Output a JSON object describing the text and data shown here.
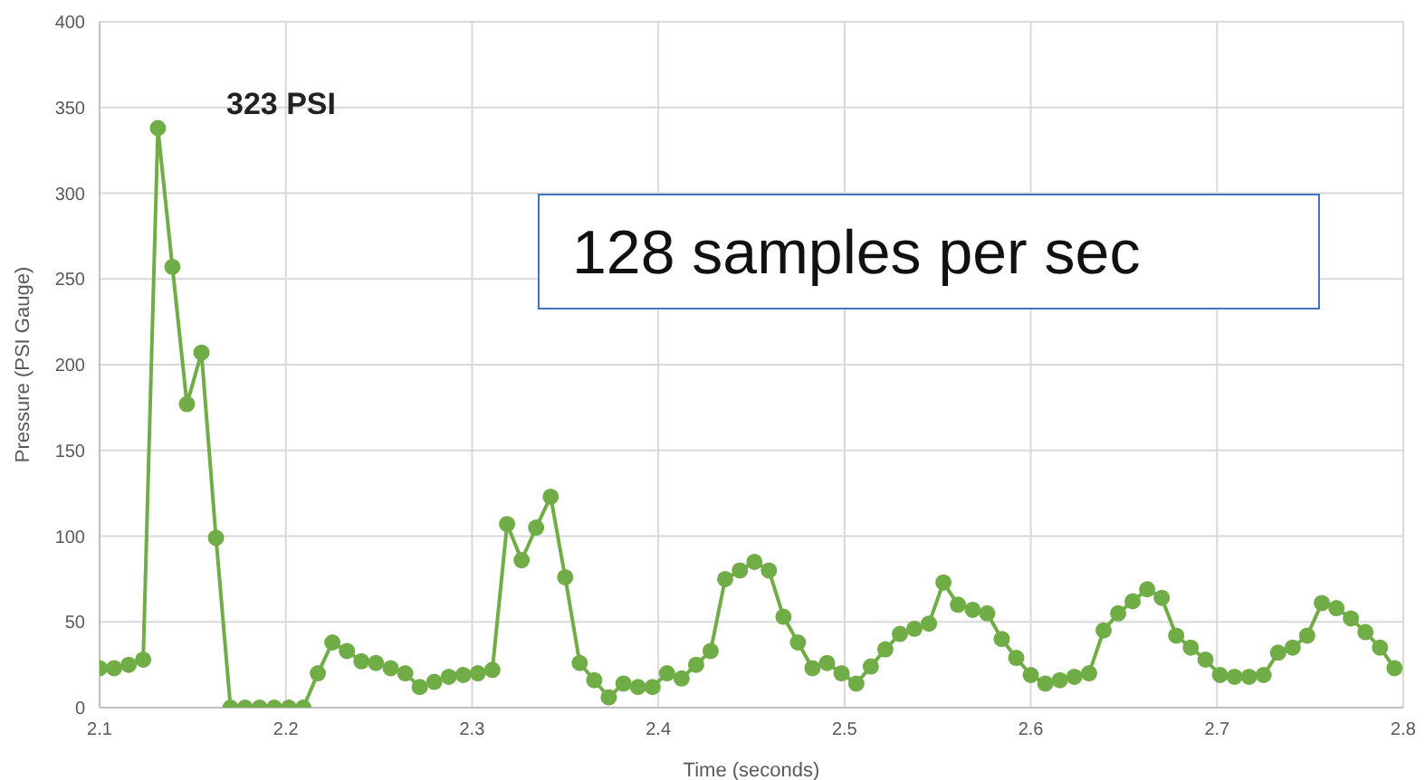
{
  "chart_data": {
    "type": "line",
    "xlabel": "Time (seconds)",
    "ylabel": "Pressure (PSI Gauge)",
    "annotations": [
      "323 PSI",
      "128 samples per sec"
    ],
    "x": [
      2.1,
      2.1078,
      2.1156,
      2.1234,
      2.1313,
      2.1391,
      2.1469,
      2.1547,
      2.1625,
      2.1703,
      2.1781,
      2.1859,
      2.1938,
      2.2016,
      2.2094,
      2.2172,
      2.225,
      2.2328,
      2.2406,
      2.2484,
      2.2563,
      2.2641,
      2.2719,
      2.2797,
      2.2875,
      2.2953,
      2.3031,
      2.3109,
      2.3188,
      2.3266,
      2.3344,
      2.3422,
      2.35,
      2.3578,
      2.3656,
      2.3734,
      2.3813,
      2.3891,
      2.3969,
      2.4047,
      2.4125,
      2.4203,
      2.4281,
      2.4359,
      2.4438,
      2.4516,
      2.4594,
      2.4672,
      2.475,
      2.4828,
      2.4906,
      2.4984,
      2.5063,
      2.5141,
      2.5219,
      2.5297,
      2.5375,
      2.5453,
      2.5531,
      2.5609,
      2.5688,
      2.5766,
      2.5844,
      2.5922,
      2.6,
      2.6078,
      2.6156,
      2.6234,
      2.6313,
      2.6391,
      2.6469,
      2.6547,
      2.6625,
      2.6703,
      2.6781,
      2.6859,
      2.6938,
      2.7016,
      2.7094,
      2.7172,
      2.725,
      2.7328,
      2.7406,
      2.7484,
      2.7563,
      2.7641,
      2.7719,
      2.7797,
      2.7875,
      2.7953
    ],
    "series": [
      {
        "color": "#70ad47",
        "values": [
          23,
          23,
          25,
          28,
          338,
          257,
          177,
          207,
          99,
          0,
          0,
          0,
          0,
          0,
          0,
          20,
          38,
          33,
          27,
          26,
          23,
          20,
          12,
          15,
          18,
          19,
          20,
          22,
          107,
          86,
          105,
          123,
          76,
          26,
          16,
          6,
          14,
          12,
          12,
          20,
          17,
          25,
          33,
          75,
          80,
          85,
          80,
          53,
          38,
          23,
          26,
          20,
          14,
          24,
          34,
          43,
          46,
          49,
          73,
          60,
          57,
          55,
          40,
          29,
          19,
          14,
          16,
          18,
          20,
          45,
          55,
          62,
          69,
          64,
          42,
          35,
          28,
          19,
          18,
          18,
          19,
          32,
          35,
          42,
          61,
          58,
          52,
          44,
          35,
          23
        ]
      }
    ],
    "xlim": [
      2.1,
      2.8
    ],
    "xticks": [
      2.1,
      2.2,
      2.3,
      2.4,
      2.5,
      2.6,
      2.7,
      2.8
    ],
    "ylim": [
      0,
      400
    ],
    "yticks": [
      0,
      50,
      100,
      150,
      200,
      250,
      300,
      350,
      400
    ],
    "grid": true,
    "legend": false,
    "marker": "circle",
    "line_style": "solid"
  }
}
